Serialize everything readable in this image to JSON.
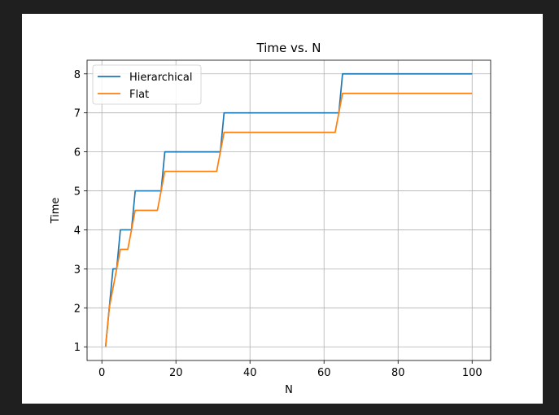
{
  "chart_data": {
    "type": "line",
    "title": "Time vs. N",
    "xlabel": "N",
    "ylabel": "Time",
    "xlim": [
      -4,
      105
    ],
    "ylim": [
      0.65,
      8.35
    ],
    "xticks": [
      0,
      20,
      40,
      60,
      80,
      100
    ],
    "yticks": [
      1,
      2,
      3,
      4,
      5,
      6,
      7,
      8
    ],
    "grid": true,
    "legend_position": "top-left",
    "series": [
      {
        "name": "Hierarchical",
        "color": "#1f77b4",
        "x": [
          1,
          2,
          3,
          4,
          5,
          8,
          9,
          16,
          17,
          32,
          33,
          64,
          65,
          100
        ],
        "y": [
          1,
          2,
          3,
          3,
          4,
          4,
          5,
          5,
          6,
          6,
          7,
          7,
          8,
          8
        ]
      },
      {
        "name": "Flat",
        "color": "#ff7f0e",
        "x": [
          1,
          2,
          3,
          4,
          5,
          6,
          7,
          8,
          9,
          15,
          16,
          17,
          31,
          32,
          33,
          63,
          64,
          65,
          100
        ],
        "y": [
          1,
          2,
          2.5,
          3,
          3.5,
          3.5,
          3.5,
          4,
          4.5,
          4.5,
          5,
          5.5,
          5.5,
          6,
          6.5,
          6.5,
          7,
          7.5,
          7.5
        ]
      }
    ]
  }
}
